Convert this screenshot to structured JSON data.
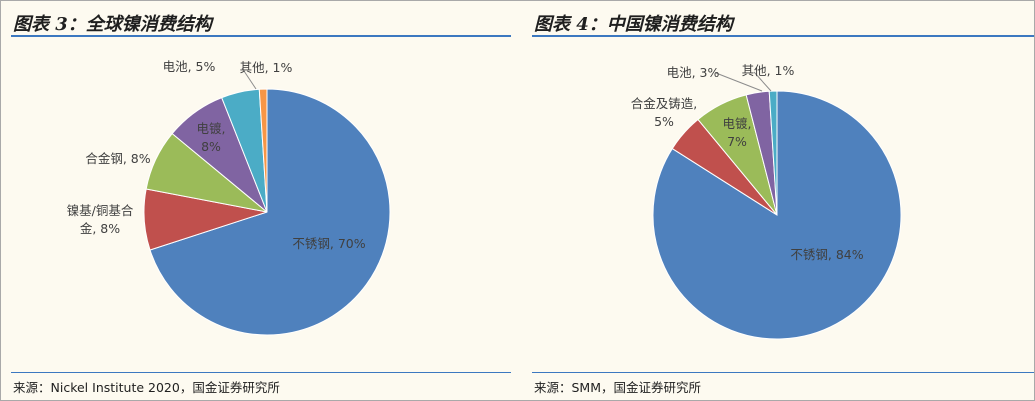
{
  "charts": [
    {
      "title": "图表 3：全球镍消费结构",
      "source": "来源：Nickel Institute 2020，国金证券研究所"
    },
    {
      "title": "图表 4：中国镍消费结构",
      "source": "来源：SMM，国金证券研究所"
    }
  ],
  "chart_data": [
    {
      "type": "pie",
      "title": "图表 3：全球镍消费结构",
      "slices": [
        {
          "name": "不锈钢",
          "value": 70,
          "label": [
            "不锈钢, 70%"
          ],
          "color": "#4f81bd"
        },
        {
          "name": "镍基/铜基合金",
          "value": 8,
          "label": [
            "镍基/铜基合",
            "金, 8%"
          ],
          "color": "#c0504d"
        },
        {
          "name": "合金钢",
          "value": 8,
          "label": [
            "合金钢, 8%"
          ],
          "color": "#9bbb59"
        },
        {
          "name": "电镀",
          "value": 8,
          "label": [
            "电镀,",
            "8%"
          ],
          "color": "#8064a2"
        },
        {
          "name": "电池",
          "value": 5,
          "label": [
            "电池, 5%"
          ],
          "color": "#4bacc6"
        },
        {
          "name": "其他",
          "value": 1,
          "label": [
            "其他, 1%"
          ],
          "color": "#f79646"
        }
      ]
    },
    {
      "type": "pie",
      "title": "图表 4：中国镍消费结构",
      "slices": [
        {
          "name": "不锈钢",
          "value": 84,
          "label": [
            "不锈钢, 84%"
          ],
          "color": "#4f81bd"
        },
        {
          "name": "合金及铸造",
          "value": 5,
          "label": [
            "合金及铸造,",
            "5%"
          ],
          "color": "#c0504d"
        },
        {
          "name": "电镀",
          "value": 7,
          "label": [
            "电镀,",
            "7%"
          ],
          "color": "#9bbb59"
        },
        {
          "name": "电池",
          "value": 3,
          "label": [
            "电池, 3%"
          ],
          "color": "#8064a2"
        },
        {
          "name": "其他",
          "value": 1,
          "label": [
            "其他, 1%"
          ],
          "color": "#4bacc6"
        }
      ]
    }
  ]
}
